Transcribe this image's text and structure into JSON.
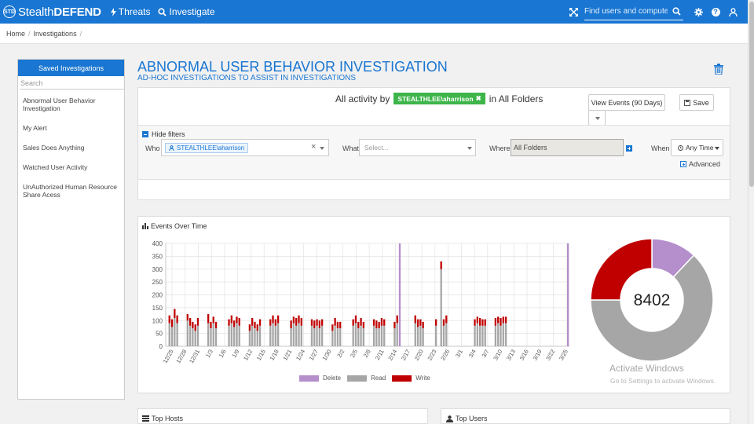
{
  "app": {
    "logo_mark": "STD",
    "brand_prefix": "Stealth",
    "brand_suffix": "DEFEND"
  },
  "nav": {
    "threats": "Threats",
    "investigate": "Investigate"
  },
  "topbar": {
    "search_placeholder": "Find users and computers",
    "icons": [
      "expand-icon",
      "search-icon",
      "gear-icon",
      "help-icon",
      "user-icon"
    ],
    "help_glyph": "?"
  },
  "breadcrumb": {
    "home": "Home",
    "investigations": "Investigations"
  },
  "sidebar": {
    "header": "Saved Investigations",
    "search_placeholder": "Search",
    "items": [
      {
        "label": "Abnormal User Behavior Investigation"
      },
      {
        "label": "My Alert"
      },
      {
        "label": "Sales Does Anything"
      },
      {
        "label": "Watched User Activity"
      },
      {
        "label": "UnAuthorized Human Resource Share Acess"
      }
    ]
  },
  "page": {
    "title": "ABNORMAL USER BEHAVIOR INVESTIGATION",
    "subtitle": "AD-HOC INVESTIGATIONS TO ASSIST IN INVESTIGATIONS"
  },
  "query": {
    "prefix": "All activity by",
    "user": "STEALTHLEE\\aharrison",
    "suffix": "in All Folders",
    "view_events_label": "View Events (90 Days)",
    "save_label": "Save"
  },
  "filters": {
    "hide_label": "Hide filters",
    "who_label": "Who",
    "who_value": "STEALTHLEE\\aharrison",
    "what_label": "What",
    "what_placeholder": "Select...",
    "where_label": "Where",
    "where_value": "All Folders",
    "when_label": "When",
    "when_value": "Any Time",
    "advanced_label": "Advanced",
    "clear_glyph": "×"
  },
  "events_panel": {
    "title": "Events Over Time",
    "total": "8402",
    "watermark_title": "Activate Windows",
    "watermark_sub": "Go to Settings to activate Windows."
  },
  "bottom": {
    "top_hosts": "Top Hosts",
    "top_users": "Top Users"
  },
  "colors": {
    "brand": "#1976d2",
    "delete": "#b48fcc",
    "read": "#a6a6a6",
    "write": "#c00000",
    "chip": "#3db54a"
  },
  "chart_data": [
    {
      "type": "bar",
      "stacked": true,
      "title": "Events Over Time",
      "x_tick_labels": [
        "12/25",
        "12/28",
        "12/31",
        "1/3",
        "1/6",
        "1/9",
        "1/12",
        "1/15",
        "1/18",
        "1/21",
        "1/24",
        "1/27",
        "1/30",
        "2/2",
        "2/5",
        "2/8",
        "2/11",
        "2/14",
        "2/17",
        "2/20",
        "2/23",
        "2/26",
        "3/1",
        "3/4",
        "3/7",
        "3/10",
        "3/13",
        "3/16",
        "3/19",
        "3/22",
        "3/25"
      ],
      "ylim": [
        0,
        400
      ],
      "y_ticks": [
        0,
        50,
        100,
        150,
        200,
        250,
        300,
        350,
        400
      ],
      "grid": true,
      "legend_position": "bottom",
      "series": [
        {
          "name": "Delete",
          "values": [
            0,
            0,
            0,
            0,
            0,
            0,
            0,
            0,
            0,
            0,
            0,
            0,
            0,
            0,
            0,
            0,
            0,
            0,
            0,
            0,
            0,
            0,
            0,
            0,
            0,
            0,
            0,
            0,
            0,
            0,
            0,
            0,
            0,
            0,
            0,
            0,
            0,
            0,
            0,
            0,
            0,
            0,
            0,
            0,
            0,
            0,
            0,
            0,
            0,
            0,
            0,
            0,
            0,
            0,
            0,
            0,
            0,
            0,
            0,
            0,
            0,
            0,
            0,
            0,
            0,
            0,
            0,
            0,
            0,
            0,
            0,
            0,
            0,
            0,
            0,
            0,
            0,
            0,
            0,
            0,
            0,
            0,
            0,
            0,
            0,
            0,
            0,
            0,
            0,
            0,
            400,
            0,
            0,
            0,
            0,
            0,
            0,
            0,
            0,
            0,
            0,
            0,
            0,
            0,
            0,
            0,
            0,
            0,
            0,
            0,
            0,
            0,
            0,
            0,
            0,
            0,
            0,
            0,
            0,
            0,
            0,
            0,
            0,
            0,
            0,
            0,
            0,
            0,
            0,
            0,
            0,
            0,
            0,
            0,
            0,
            0,
            0,
            0,
            0,
            0,
            0,
            0,
            0,
            0,
            0,
            0,
            0,
            0,
            0,
            0,
            0,
            0,
            0,
            0,
            0,
            400
          ]
        },
        {
          "name": "Read",
          "values": [
            0,
            90,
            75,
            110,
            90,
            0,
            0,
            0,
            100,
            80,
            70,
            60,
            80,
            0,
            0,
            0,
            90,
            70,
            90,
            70,
            0,
            0,
            0,
            0,
            80,
            90,
            75,
            90,
            80,
            0,
            0,
            0,
            60,
            80,
            70,
            60,
            80,
            0,
            0,
            0,
            80,
            90,
            80,
            90,
            0,
            0,
            0,
            0,
            70,
            90,
            80,
            90,
            80,
            0,
            0,
            0,
            80,
            70,
            80,
            70,
            80,
            0,
            0,
            0,
            60,
            80,
            70,
            70,
            0,
            0,
            0,
            0,
            80,
            90,
            70,
            80,
            70,
            0,
            0,
            0,
            80,
            70,
            70,
            80,
            80,
            0,
            0,
            0,
            70,
            90,
            0,
            0,
            0,
            0,
            0,
            0,
            90,
            75,
            80,
            70,
            0,
            0,
            0,
            0,
            80,
            0,
            300,
            80,
            90,
            0,
            0,
            0,
            0,
            0,
            0,
            0,
            0,
            0,
            0,
            80,
            90,
            80,
            80,
            80,
            0,
            0,
            0,
            80,
            90,
            80,
            90,
            90,
            0,
            0,
            0,
            0,
            0,
            0,
            0,
            0,
            0,
            0,
            0,
            0,
            0,
            0,
            0,
            0,
            0,
            0,
            0,
            0,
            0,
            0,
            0,
            0
          ]
        },
        {
          "name": "Write",
          "values": [
            0,
            30,
            30,
            35,
            30,
            0,
            0,
            0,
            25,
            30,
            25,
            25,
            30,
            0,
            0,
            0,
            35,
            25,
            25,
            25,
            0,
            0,
            0,
            0,
            25,
            30,
            25,
            25,
            30,
            0,
            0,
            0,
            25,
            30,
            25,
            25,
            25,
            0,
            0,
            0,
            25,
            30,
            25,
            30,
            0,
            0,
            0,
            0,
            30,
            25,
            30,
            30,
            30,
            0,
            0,
            0,
            25,
            30,
            25,
            30,
            25,
            0,
            0,
            0,
            25,
            30,
            25,
            25,
            0,
            0,
            0,
            0,
            25,
            30,
            25,
            30,
            25,
            0,
            0,
            0,
            25,
            30,
            25,
            30,
            25,
            0,
            0,
            0,
            25,
            30,
            0,
            0,
            0,
            0,
            0,
            0,
            30,
            30,
            25,
            25,
            0,
            0,
            0,
            0,
            25,
            0,
            30,
            25,
            30,
            0,
            0,
            0,
            0,
            0,
            0,
            0,
            0,
            0,
            0,
            25,
            25,
            30,
            25,
            25,
            0,
            0,
            0,
            30,
            25,
            30,
            25,
            25,
            0,
            0,
            0,
            0,
            0,
            0,
            0,
            0,
            0,
            0,
            0,
            0,
            0,
            0,
            0,
            0,
            0,
            0,
            0,
            0,
            0,
            0,
            0,
            0
          ]
        }
      ]
    },
    {
      "type": "pie",
      "donut": true,
      "center_label": "8402",
      "categories": [
        "Delete",
        "Read",
        "Write"
      ],
      "values": [
        12,
        63,
        25
      ]
    }
  ]
}
